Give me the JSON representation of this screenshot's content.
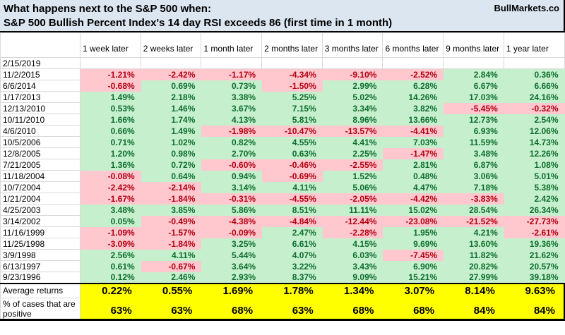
{
  "brand": "BullMarkets.co",
  "colors": {
    "title_bg": "#dce6f1",
    "positive_bg": "#c6efce",
    "positive_text": "#0e6f2e",
    "negative_bg": "#ffc7ce",
    "negative_text": "#b30011",
    "summary_bg": "#ffff00",
    "gridline": "#d9d9d9"
  },
  "chart_data": {
    "type": "table",
    "title": "What happens next to the S&P 500 when:",
    "subtitle": "S&P 500 Bullish Percent Index's 14 day RSI exceeds 86 (first time in 1 month)",
    "value_unit": "%",
    "columns": [
      "1 week later",
      "2 weeks later",
      "1 month later",
      "2 months later",
      "3 months later",
      "6 months later",
      "9 months later",
      "1 year later"
    ],
    "rows": [
      {
        "date": "2/15/2019",
        "values": [
          null,
          null,
          null,
          null,
          null,
          null,
          null,
          null
        ]
      },
      {
        "date": "11/2/2015",
        "values": [
          -1.21,
          -2.42,
          -1.17,
          -4.34,
          -9.1,
          -2.52,
          2.84,
          0.36
        ]
      },
      {
        "date": "6/6/2014",
        "values": [
          -0.68,
          0.69,
          0.73,
          -1.5,
          2.99,
          6.28,
          6.67,
          6.66
        ]
      },
      {
        "date": "1/17/2013",
        "values": [
          1.49,
          2.18,
          3.38,
          5.25,
          5.02,
          14.26,
          17.03,
          24.16
        ]
      },
      {
        "date": "12/13/2010",
        "values": [
          0.53,
          1.46,
          3.67,
          7.15,
          3.34,
          3.82,
          -5.45,
          -0.32
        ]
      },
      {
        "date": "10/11/2010",
        "values": [
          1.66,
          1.74,
          4.13,
          5.81,
          8.96,
          13.66,
          12.73,
          2.54
        ]
      },
      {
        "date": "4/6/2010",
        "values": [
          0.66,
          1.49,
          -1.98,
          -10.47,
          -13.57,
          -4.41,
          6.93,
          12.06
        ]
      },
      {
        "date": "10/5/2006",
        "values": [
          0.71,
          1.02,
          0.82,
          4.55,
          4.41,
          7.03,
          11.59,
          14.73
        ]
      },
      {
        "date": "12/8/2005",
        "values": [
          1.2,
          0.98,
          2.7,
          0.63,
          2.25,
          -1.47,
          3.48,
          12.26
        ]
      },
      {
        "date": "7/21/2005",
        "values": [
          1.36,
          0.72,
          -0.6,
          -0.46,
          -2.55,
          2.81,
          6.87,
          1.08
        ]
      },
      {
        "date": "11/18/2004",
        "values": [
          -0.08,
          0.64,
          0.94,
          -0.69,
          1.52,
          0.48,
          3.06,
          5.01
        ]
      },
      {
        "date": "10/7/2004",
        "values": [
          -2.42,
          -2.14,
          3.14,
          4.11,
          5.06,
          4.47,
          7.18,
          5.38
        ]
      },
      {
        "date": "1/21/2004",
        "values": [
          -1.67,
          -1.84,
          -0.31,
          -4.55,
          -2.05,
          -4.42,
          -3.83,
          2.42
        ]
      },
      {
        "date": "4/25/2003",
        "values": [
          3.48,
          3.85,
          5.86,
          8.51,
          11.11,
          15.02,
          28.54,
          26.34
        ]
      },
      {
        "date": "3/14/2002",
        "values": [
          0.05,
          -0.49,
          -4.38,
          -4.84,
          -12.44,
          -23.08,
          -21.52,
          -27.73
        ]
      },
      {
        "date": "11/16/1999",
        "values": [
          -1.09,
          -1.57,
          -0.09,
          2.47,
          -2.28,
          1.95,
          4.21,
          -2.61
        ]
      },
      {
        "date": "11/25/1998",
        "values": [
          -3.09,
          -1.84,
          3.25,
          6.61,
          4.15,
          9.69,
          13.6,
          19.36
        ]
      },
      {
        "date": "3/9/1998",
        "values": [
          2.56,
          4.11,
          5.44,
          4.07,
          6.03,
          -7.45,
          11.82,
          21.62
        ]
      },
      {
        "date": "6/13/1997",
        "values": [
          0.61,
          -0.67,
          3.64,
          3.22,
          3.43,
          6.9,
          20.82,
          20.57
        ]
      },
      {
        "date": "9/23/1996",
        "values": [
          0.12,
          2.46,
          2.93,
          8.37,
          9.09,
          15.21,
          27.99,
          39.18
        ]
      }
    ],
    "summary": {
      "average_label": "Average returns",
      "average_values": [
        0.22,
        0.55,
        1.69,
        1.78,
        1.34,
        3.07,
        8.14,
        9.63
      ],
      "percent_label": "% of cases that are positive",
      "percent_values": [
        63,
        63,
        68,
        63,
        68,
        68,
        84,
        84
      ]
    }
  }
}
